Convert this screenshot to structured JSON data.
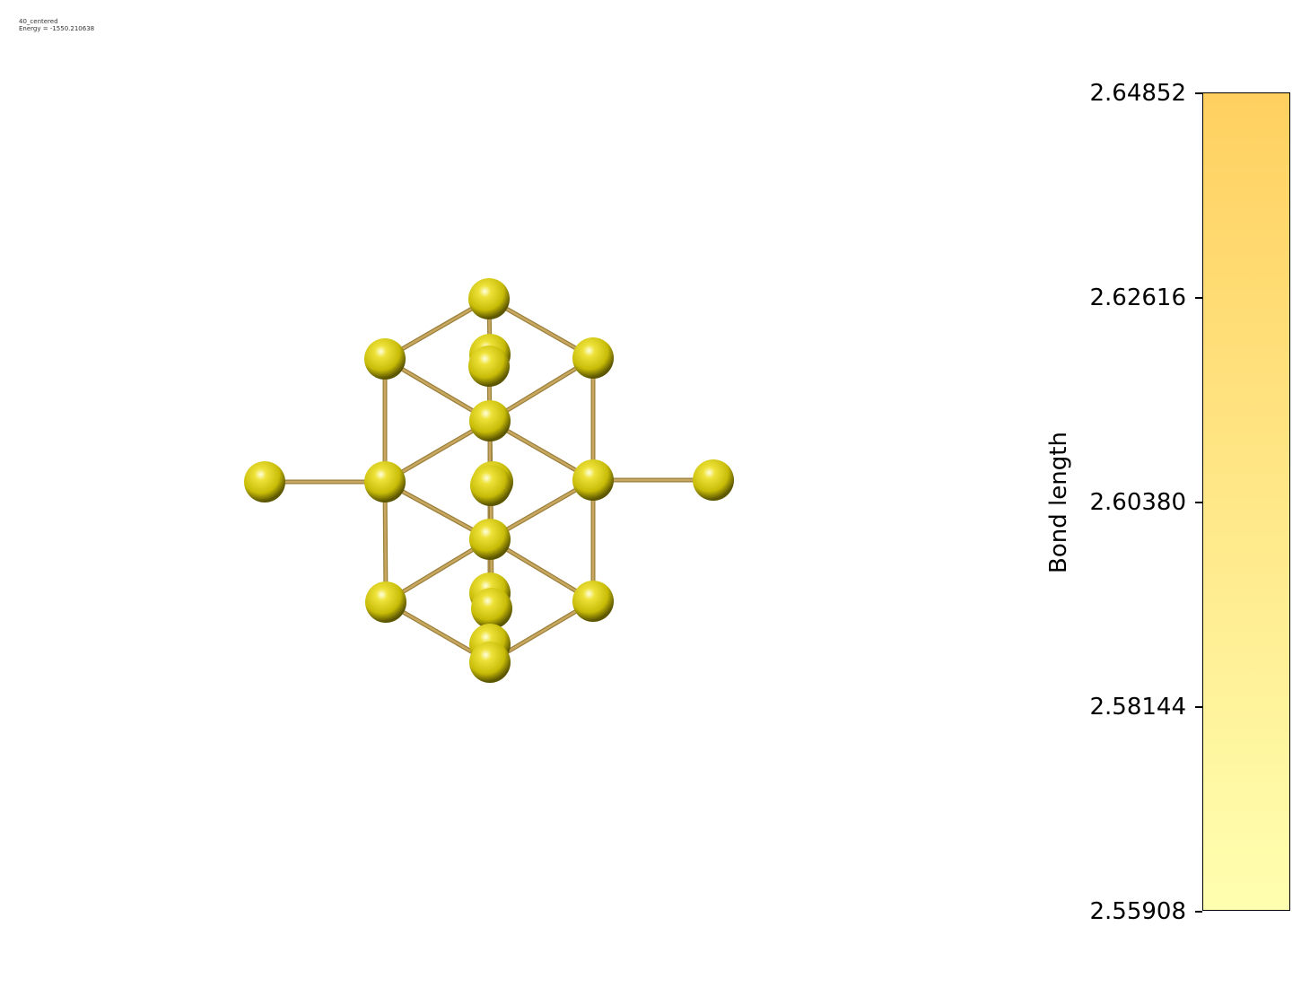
{
  "caption": {
    "name": "40_centered",
    "energy": "Energy = -1550.210638"
  },
  "colorbar": {
    "label": "Bond length",
    "ticks": [
      "2.64852",
      "2.62616",
      "2.60380",
      "2.58144",
      "2.55908"
    ],
    "color_top": "#FFD060",
    "color_bottom": "#FFFFB0"
  },
  "molecule": {
    "atom_color": "#D4CC10",
    "bond_color": "#C8A860",
    "atom_count": 19
  }
}
